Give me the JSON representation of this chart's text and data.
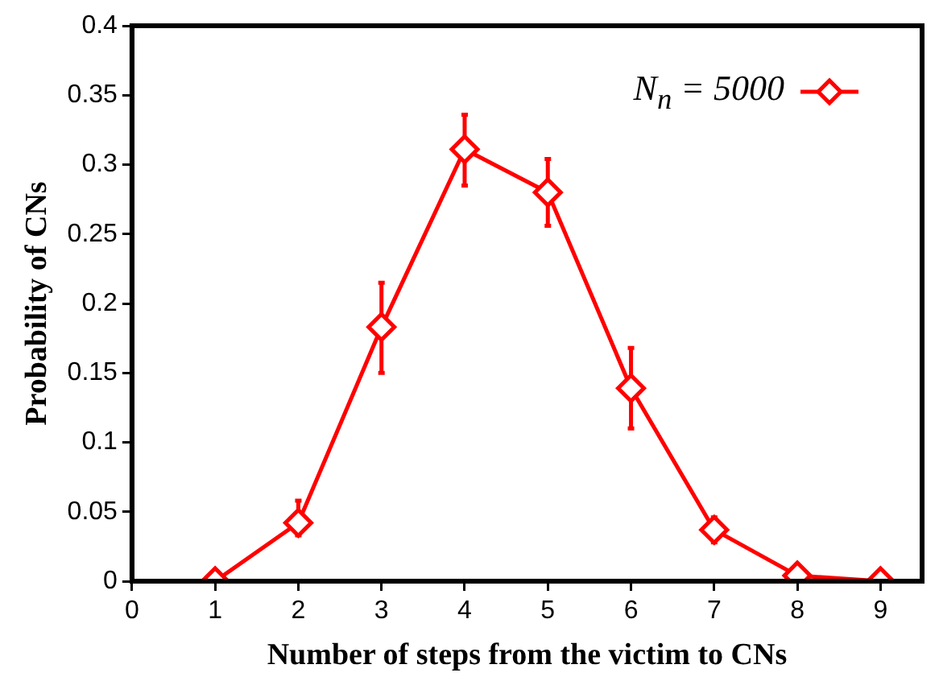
{
  "chart_data": {
    "type": "line",
    "xlabel": "Number of steps from the victim to CNs",
    "ylabel": "Probability of CNs",
    "x": [
      1,
      2,
      3,
      4,
      5,
      6,
      7,
      8,
      9
    ],
    "series": [
      {
        "name": "N$_{n}$ = 5000",
        "color": "#ff0000",
        "values": [
          0,
          0.042,
          0.183,
          0.311,
          0.28,
          0.139,
          0.037,
          0.004,
          0
        ],
        "errors": [
          null,
          [
            0.033,
            0.058
          ],
          [
            0.15,
            0.215
          ],
          [
            0.285,
            0.336
          ],
          [
            0.256,
            0.304
          ],
          [
            0.11,
            0.168
          ],
          [
            0.028,
            0.046
          ],
          null,
          null
        ]
      }
    ],
    "xlim": [
      0,
      9.5
    ],
    "xticks": [
      0,
      1,
      2,
      3,
      4,
      5,
      6,
      7,
      8,
      9
    ],
    "ylim": [
      0,
      0.4
    ],
    "yticks": [
      0,
      0.05,
      0.1,
      0.15,
      0.2,
      0.25,
      0.3,
      0.35,
      0.4
    ],
    "grid": false,
    "legend": "top right",
    "marker": "diamond",
    "line_style": "solid"
  }
}
